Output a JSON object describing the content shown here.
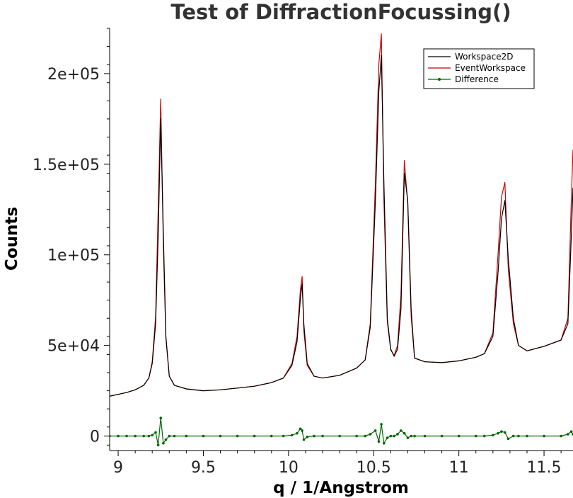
{
  "chart_data": {
    "type": "line",
    "title": "Test of DiffractionFocussing()",
    "xlabel": "q / 1/Angstrom",
    "ylabel": "Counts",
    "xlim": [
      8.95,
      11.67
    ],
    "ylim": [
      -8000,
      225000
    ],
    "xticks": [
      9,
      9.5,
      10,
      10.5,
      11,
      11.5
    ],
    "xtick_labels": [
      "9",
      "9.5",
      "10",
      "10.5",
      "11",
      "11.5"
    ],
    "yticks": [
      0,
      50000,
      100000,
      150000,
      200000
    ],
    "ytick_labels": [
      "0",
      "5e+04",
      "1e+05",
      "1.5e+05",
      "2e+05"
    ],
    "grid": false,
    "legend_position": "top-right",
    "series": [
      {
        "name": "Workspace2D",
        "color": "#000000",
        "x": [
          8.95,
          9.0,
          9.05,
          9.1,
          9.15,
          9.18,
          9.2,
          9.22,
          9.235,
          9.25,
          9.265,
          9.28,
          9.3,
          9.33,
          9.4,
          9.5,
          9.6,
          9.7,
          9.8,
          9.9,
          9.97,
          10.02,
          10.05,
          10.07,
          10.08,
          10.09,
          10.11,
          10.15,
          10.2,
          10.3,
          10.4,
          10.45,
          10.48,
          10.51,
          10.53,
          10.545,
          10.56,
          10.58,
          10.6,
          10.62,
          10.64,
          10.66,
          10.68,
          10.7,
          10.72,
          10.74,
          10.8,
          10.9,
          11.0,
          11.1,
          11.15,
          11.2,
          11.23,
          11.25,
          11.27,
          11.29,
          11.32,
          11.35,
          11.4,
          11.5,
          11.6,
          11.64,
          11.66,
          11.67
        ],
        "y": [
          22000,
          23000,
          24000,
          25500,
          28000,
          32000,
          40000,
          62000,
          110000,
          175000,
          112000,
          55000,
          33000,
          28000,
          26000,
          25000,
          25500,
          26500,
          27500,
          29500,
          32000,
          39000,
          52000,
          76000,
          84000,
          62000,
          40000,
          33000,
          32000,
          33500,
          37500,
          42000,
          60000,
          130000,
          190000,
          210000,
          140000,
          65000,
          48000,
          44000,
          48000,
          70000,
          145000,
          130000,
          70000,
          43000,
          41000,
          40500,
          41500,
          43500,
          45500,
          55000,
          90000,
          120000,
          130000,
          98000,
          65000,
          50000,
          47000,
          49500,
          53000,
          62000,
          110000,
          137000
        ]
      },
      {
        "name": "EventWorkspace",
        "color": "#cc0000",
        "x": [
          8.95,
          9.0,
          9.05,
          9.1,
          9.15,
          9.18,
          9.2,
          9.22,
          9.235,
          9.25,
          9.265,
          9.28,
          9.3,
          9.33,
          9.4,
          9.5,
          9.6,
          9.7,
          9.8,
          9.9,
          9.97,
          10.02,
          10.05,
          10.07,
          10.08,
          10.09,
          10.11,
          10.15,
          10.2,
          10.3,
          10.4,
          10.45,
          10.48,
          10.51,
          10.53,
          10.545,
          10.56,
          10.58,
          10.6,
          10.62,
          10.64,
          10.66,
          10.68,
          10.7,
          10.72,
          10.74,
          10.8,
          10.9,
          11.0,
          11.1,
          11.15,
          11.2,
          11.23,
          11.25,
          11.27,
          11.29,
          11.32,
          11.35,
          11.4,
          11.5,
          11.6,
          11.64,
          11.66,
          11.67
        ],
        "y": [
          22000,
          23000,
          24000,
          25500,
          28000,
          32000,
          41000,
          66000,
          125000,
          186000,
          105000,
          54000,
          33000,
          28000,
          26000,
          25000,
          25500,
          26500,
          27500,
          29500,
          32000,
          40000,
          55000,
          81000,
          88000,
          58000,
          39000,
          33000,
          32000,
          33500,
          37500,
          42000,
          62000,
          140000,
          205000,
          222000,
          130000,
          63000,
          47500,
          44500,
          50000,
          78000,
          152000,
          128000,
          66000,
          43000,
          41000,
          40500,
          41500,
          43500,
          45500,
          57000,
          100000,
          132000,
          140000,
          92000,
          62000,
          50000,
          47000,
          49500,
          53000,
          65000,
          130000,
          158000
        ]
      },
      {
        "name": "Difference",
        "color": "#006600",
        "x": [
          8.95,
          9.0,
          9.05,
          9.1,
          9.15,
          9.18,
          9.2,
          9.22,
          9.235,
          9.25,
          9.265,
          9.28,
          9.3,
          9.33,
          9.4,
          9.5,
          9.6,
          9.7,
          9.8,
          9.9,
          9.97,
          10.02,
          10.05,
          10.07,
          10.08,
          10.09,
          10.11,
          10.15,
          10.2,
          10.3,
          10.4,
          10.45,
          10.48,
          10.51,
          10.53,
          10.545,
          10.56,
          10.58,
          10.6,
          10.62,
          10.64,
          10.66,
          10.68,
          10.7,
          10.72,
          10.74,
          10.8,
          10.9,
          11.0,
          11.1,
          11.15,
          11.2,
          11.23,
          11.25,
          11.27,
          11.29,
          11.32,
          11.35,
          11.4,
          11.5,
          11.6,
          11.64,
          11.66,
          11.67
        ],
        "y": [
          0,
          0,
          0,
          0,
          0,
          0,
          500,
          2000,
          -5000,
          10000,
          -4000,
          -2000,
          0,
          0,
          0,
          0,
          0,
          0,
          0,
          0,
          0,
          500,
          1500,
          4000,
          3000,
          -2000,
          -500,
          0,
          0,
          0,
          0,
          0,
          1000,
          3000,
          -3000,
          6500,
          -4000,
          -1000,
          0,
          0,
          1000,
          3000,
          1500,
          -1000,
          0,
          0,
          0,
          0,
          0,
          0,
          0,
          500,
          1500,
          2500,
          2000,
          -1500,
          0,
          0,
          0,
          0,
          0,
          1000,
          2500,
          1000
        ]
      }
    ]
  }
}
